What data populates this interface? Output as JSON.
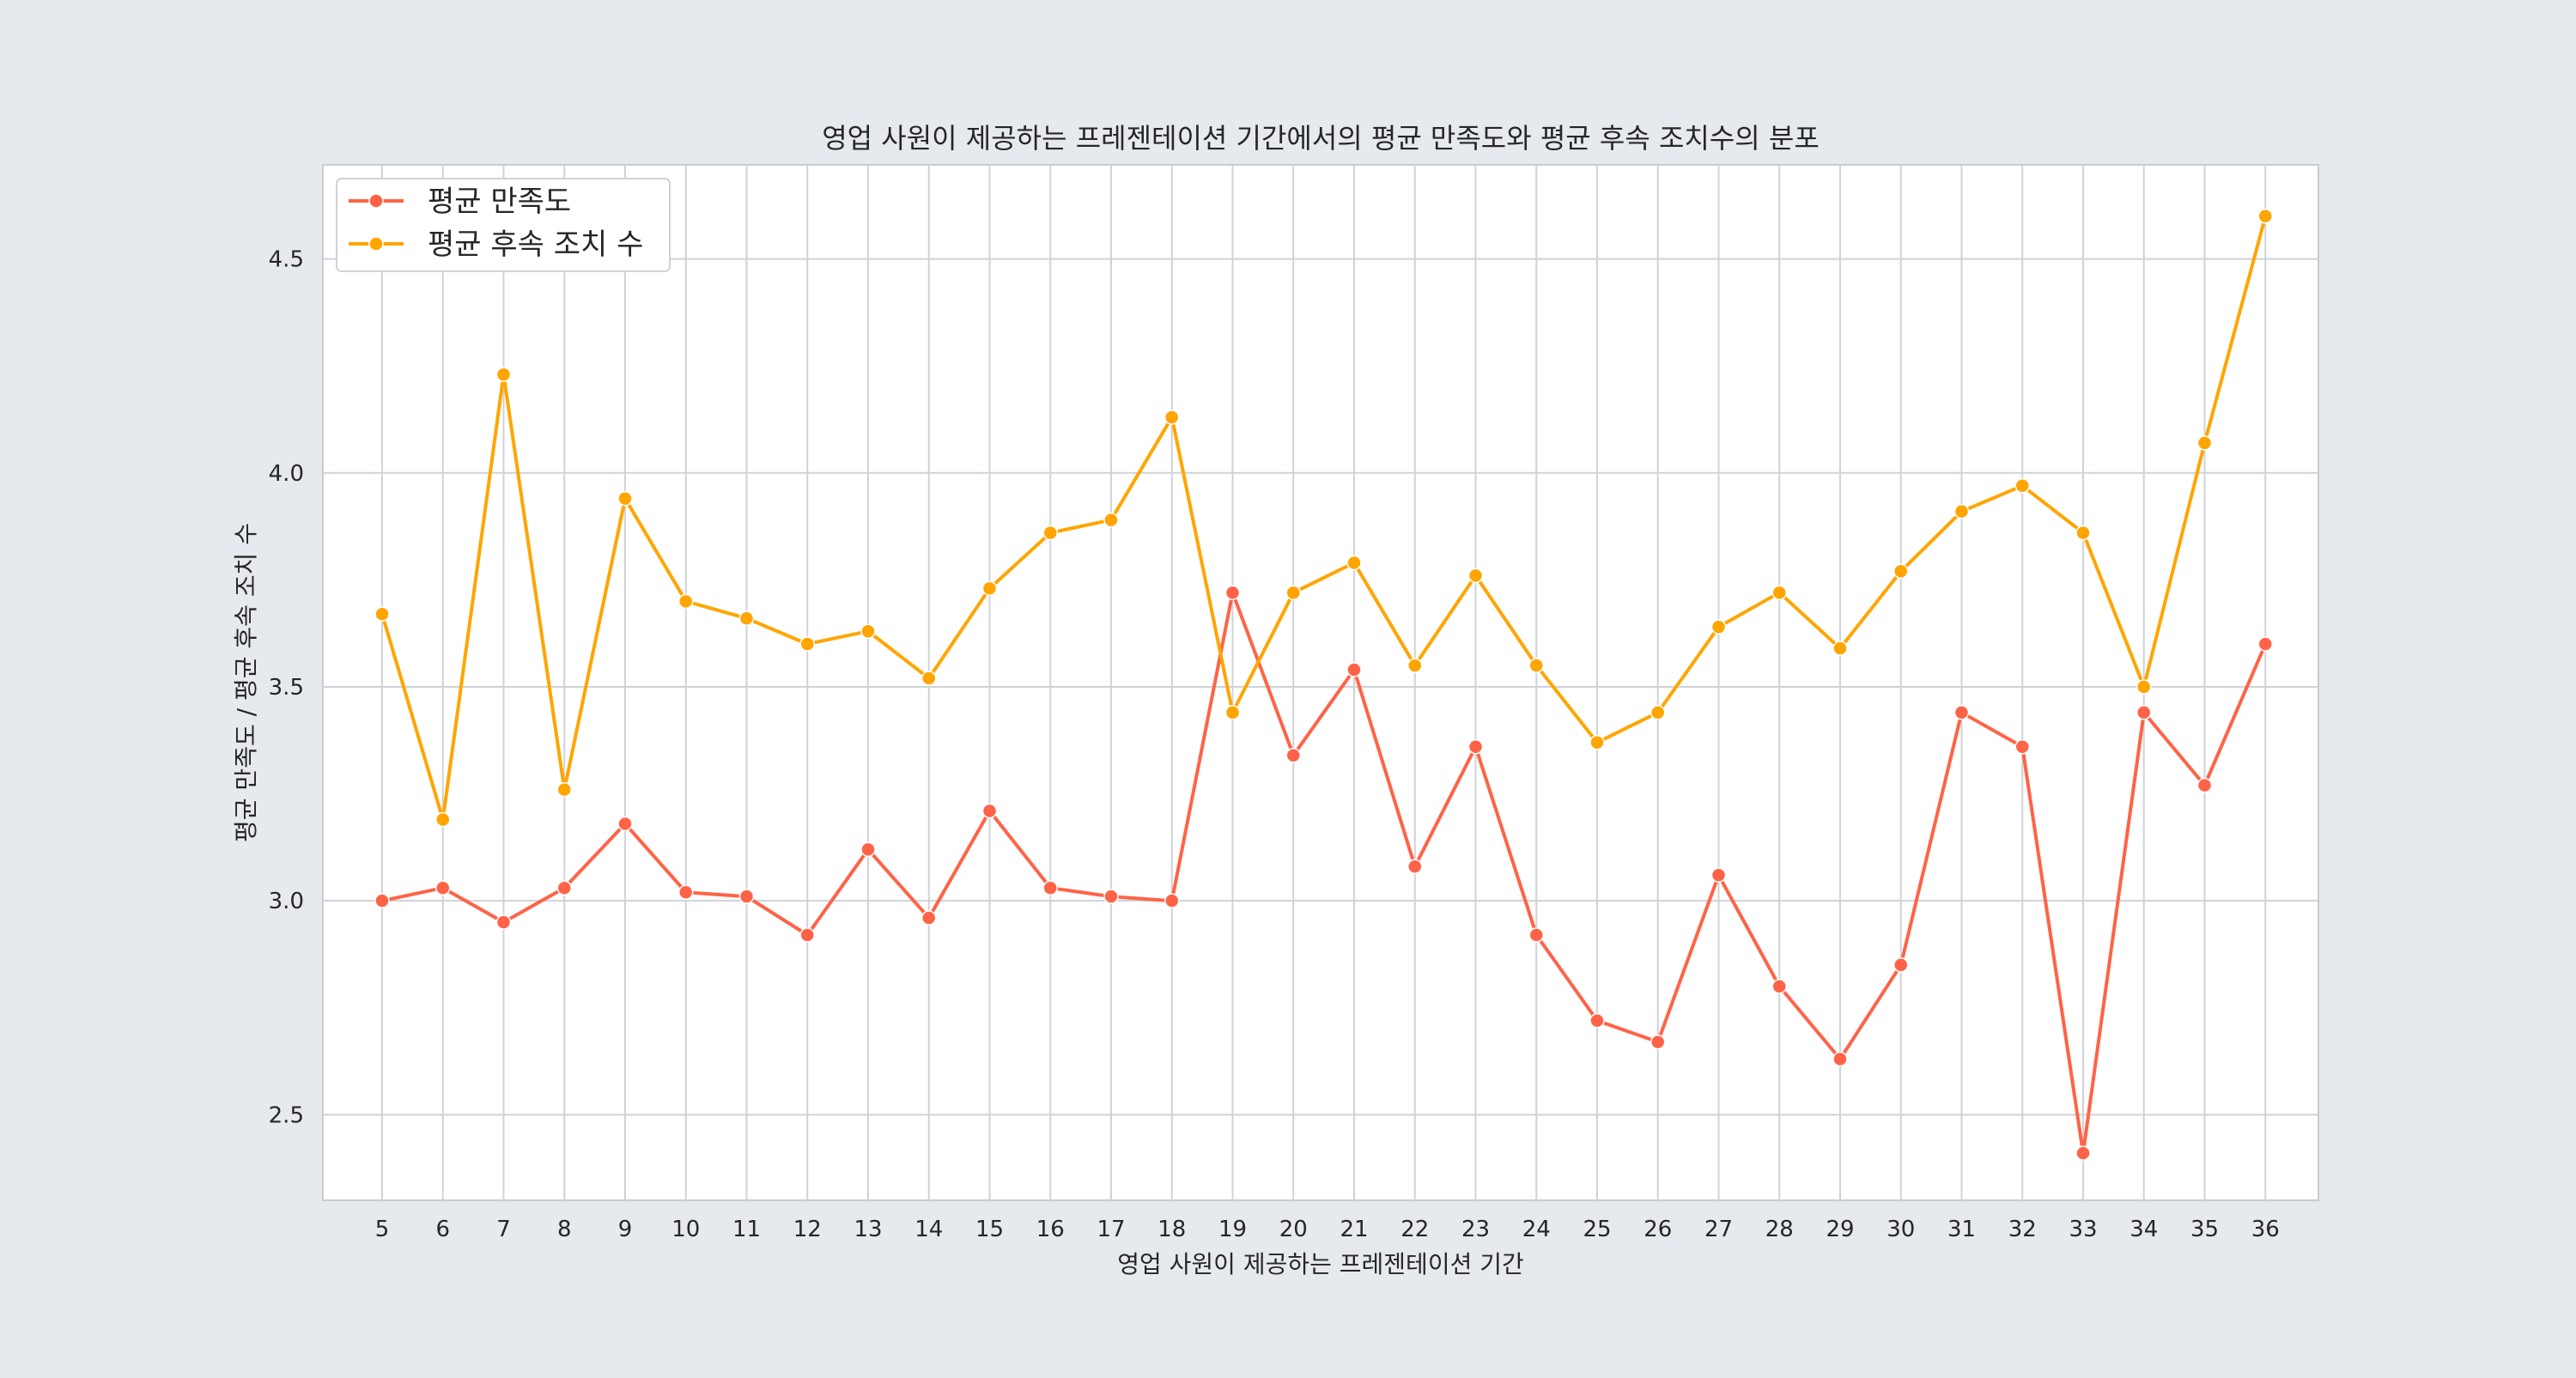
{
  "chart_data": {
    "type": "line",
    "title": "영업 사원이 제공하는 프레젠테이션 기간에서의 평균 만족도와 평균 후속 조치수의 분포",
    "xlabel": "영업 사원이 제공하는 프레젠테이션 기간",
    "ylabel": "평균 만족도 / 평균 후속 조치 수",
    "x": [
      5,
      6,
      7,
      8,
      9,
      10,
      11,
      12,
      13,
      14,
      15,
      16,
      17,
      18,
      19,
      20,
      21,
      22,
      23,
      24,
      25,
      26,
      27,
      28,
      29,
      30,
      31,
      32,
      33,
      34,
      35,
      36
    ],
    "yticks": [
      "2.5",
      "3.0",
      "3.5",
      "4.0",
      "4.5"
    ],
    "ylim": [
      2.3,
      4.72
    ],
    "grid": true,
    "legend_position": "top-left",
    "series": [
      {
        "name": "평균 만족도",
        "color": "#ff6347",
        "values": [
          3.0,
          3.03,
          2.95,
          3.03,
          3.18,
          3.02,
          3.01,
          2.92,
          3.12,
          2.96,
          3.21,
          3.03,
          3.01,
          3.0,
          3.72,
          3.34,
          3.54,
          3.08,
          3.36,
          2.92,
          2.72,
          2.67,
          3.06,
          2.8,
          2.63,
          2.85,
          3.44,
          3.36,
          2.41,
          3.44,
          3.27,
          3.6
        ]
      },
      {
        "name": "평균 후속 조치 수",
        "color": "#ffa500",
        "values": [
          3.67,
          3.19,
          4.23,
          3.26,
          3.94,
          3.7,
          3.66,
          3.6,
          3.63,
          3.52,
          3.73,
          3.86,
          3.89,
          4.13,
          3.44,
          3.72,
          3.79,
          3.55,
          3.76,
          3.55,
          3.37,
          3.44,
          3.64,
          3.72,
          3.59,
          3.77,
          3.91,
          3.97,
          3.86,
          3.5,
          4.07,
          4.6
        ]
      }
    ]
  }
}
